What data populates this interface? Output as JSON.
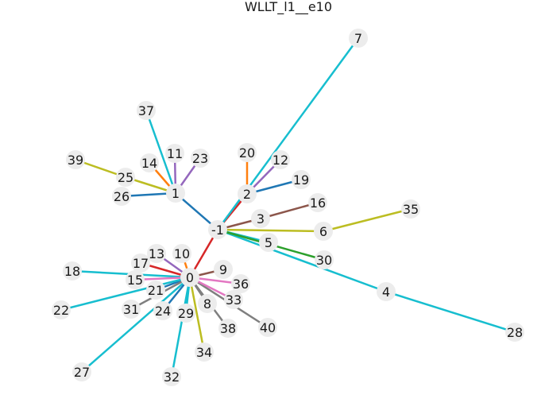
{
  "title": "WLLT_l1__e10",
  "node_color": "#ececec",
  "nodes": [
    "-1",
    "0",
    "1",
    "2",
    "3",
    "4",
    "5",
    "6",
    "7",
    "8",
    "9",
    "10",
    "11",
    "12",
    "13",
    "14",
    "15",
    "16",
    "17",
    "18",
    "19",
    "20",
    "21",
    "22",
    "23",
    "24",
    "25",
    "26",
    "27",
    "28",
    "29",
    "30",
    "31",
    "32",
    "33",
    "34",
    "35",
    "36",
    "37",
    "38",
    "39",
    "40"
  ],
  "edges": [
    {
      "from": "-1",
      "to": "0",
      "color": "#d62728"
    },
    {
      "from": "-1",
      "to": "1",
      "color": "#1f77b4"
    },
    {
      "from": "-1",
      "to": "2",
      "color": "#d62728"
    },
    {
      "from": "-1",
      "to": "3",
      "color": "#8c564b"
    },
    {
      "from": "-1",
      "to": "4",
      "color": "#17becf"
    },
    {
      "from": "-1",
      "to": "5",
      "color": "#17becf"
    },
    {
      "from": "-1",
      "to": "6",
      "color": "#bcbd22"
    },
    {
      "from": "-1",
      "to": "7",
      "color": "#17becf"
    },
    {
      "from": "-1",
      "to": "30",
      "color": "#2ca02c"
    },
    {
      "from": "2",
      "to": "20",
      "color": "#ff7f0e"
    },
    {
      "from": "2",
      "to": "12",
      "color": "#9467bd"
    },
    {
      "from": "2",
      "to": "19",
      "color": "#1f77b4"
    },
    {
      "from": "3",
      "to": "16",
      "color": "#8c564b"
    },
    {
      "from": "6",
      "to": "35",
      "color": "#bcbd22"
    },
    {
      "from": "4",
      "to": "28",
      "color": "#17becf"
    },
    {
      "from": "1",
      "to": "37",
      "color": "#17becf"
    },
    {
      "from": "1",
      "to": "11",
      "color": "#9467bd"
    },
    {
      "from": "1",
      "to": "23",
      "color": "#9467bd"
    },
    {
      "from": "1",
      "to": "14",
      "color": "#ff7f0e"
    },
    {
      "from": "1",
      "to": "25",
      "color": "#bcbd22"
    },
    {
      "from": "1",
      "to": "26",
      "color": "#1f77b4"
    },
    {
      "from": "25",
      "to": "39",
      "color": "#bcbd22"
    },
    {
      "from": "0",
      "to": "10",
      "color": "#ff7f0e"
    },
    {
      "from": "0",
      "to": "13",
      "color": "#9467bd"
    },
    {
      "from": "0",
      "to": "17",
      "color": "#d62728"
    },
    {
      "from": "0",
      "to": "18",
      "color": "#17becf"
    },
    {
      "from": "0",
      "to": "15",
      "color": "#e377c2"
    },
    {
      "from": "0",
      "to": "21",
      "color": "#1f77b4"
    },
    {
      "from": "0",
      "to": "22",
      "color": "#17becf"
    },
    {
      "from": "0",
      "to": "31",
      "color": "#7f7f7f"
    },
    {
      "from": "0",
      "to": "27",
      "color": "#17becf"
    },
    {
      "from": "0",
      "to": "24",
      "color": "#1f77b4"
    },
    {
      "from": "0",
      "to": "32",
      "color": "#17becf"
    },
    {
      "from": "0",
      "to": "29",
      "color": "#17becf"
    },
    {
      "from": "0",
      "to": "34",
      "color": "#bcbd22"
    },
    {
      "from": "0",
      "to": "8",
      "color": "#7f7f7f"
    },
    {
      "from": "0",
      "to": "38",
      "color": "#7f7f7f"
    },
    {
      "from": "0",
      "to": "40",
      "color": "#7f7f7f"
    },
    {
      "from": "0",
      "to": "33",
      "color": "#e377c2"
    },
    {
      "from": "0",
      "to": "36",
      "color": "#e377c2"
    },
    {
      "from": "0",
      "to": "9",
      "color": "#8c564b"
    }
  ]
}
